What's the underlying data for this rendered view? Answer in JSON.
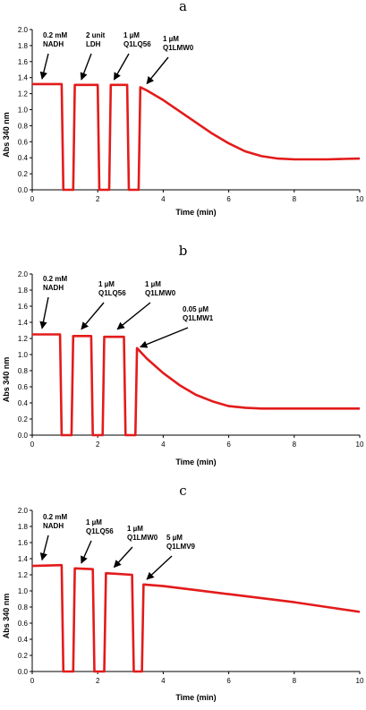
{
  "chart_data": [
    {
      "type": "line",
      "panel": "a",
      "xlabel": "Time (min)",
      "ylabel": "Abs 340 nm",
      "xlim": [
        0,
        10
      ],
      "ylim": [
        0,
        2.0
      ],
      "xticks": [
        "0",
        "2",
        "4",
        "6",
        "8",
        "10"
      ],
      "yticks": [
        "0.0",
        "0.2",
        "0.4",
        "0.6",
        "0.8",
        "1.0",
        "1.2",
        "1.4",
        "1.6",
        "1.8",
        "2.0"
      ],
      "grid": false,
      "series": [
        {
          "color": "#e31b1b",
          "x": [
            0,
            0.9,
            0.95,
            1.25,
            1.3,
            2.0,
            2.05,
            2.35,
            2.4,
            2.9,
            2.95,
            3.25,
            3.3,
            3.5,
            4.0,
            4.5,
            5.0,
            5.5,
            6.0,
            6.5,
            7.0,
            7.5,
            8.0,
            8.5,
            9.0,
            9.5,
            10
          ],
          "y": [
            1.32,
            1.32,
            0.0,
            0.0,
            1.31,
            1.31,
            0.0,
            0.0,
            1.31,
            1.31,
            0.0,
            0.0,
            1.28,
            1.24,
            1.12,
            0.98,
            0.84,
            0.7,
            0.58,
            0.48,
            0.42,
            0.39,
            0.38,
            0.38,
            0.38,
            0.385,
            0.39
          ]
        }
      ],
      "annotations": [
        {
          "lines": [
            "0.2 mM",
            "NADH"
          ],
          "point": [
            0.3,
            1.34
          ]
        },
        {
          "lines": [
            "2 unit",
            "LDH"
          ],
          "point": [
            1.5,
            1.33
          ]
        },
        {
          "lines": [
            "1 µM",
            "Q1LQ56"
          ],
          "point": [
            2.5,
            1.33
          ]
        },
        {
          "lines": [
            "1 µM",
            "Q1LMW0"
          ],
          "point": [
            3.5,
            1.28
          ]
        }
      ]
    },
    {
      "type": "line",
      "panel": "b",
      "xlabel": "Time (min)",
      "ylabel": "Abs 340 nm",
      "xlim": [
        0,
        10
      ],
      "ylim": [
        0,
        2.0
      ],
      "xticks": [
        "0",
        "2",
        "4",
        "6",
        "8",
        "10"
      ],
      "yticks": [
        "0.0",
        "0.2",
        "0.4",
        "0.6",
        "0.8",
        "1.0",
        "1.2",
        "1.4",
        "1.6",
        "1.8",
        "2.0"
      ],
      "grid": false,
      "series": [
        {
          "color": "#e31b1b",
          "x": [
            0,
            0.85,
            0.9,
            1.2,
            1.25,
            1.8,
            1.85,
            2.15,
            2.2,
            2.8,
            2.85,
            3.15,
            3.2,
            3.5,
            4.0,
            4.5,
            5.0,
            5.5,
            6.0,
            6.5,
            7.0,
            8.0,
            9.0,
            10
          ],
          "y": [
            1.25,
            1.25,
            0.0,
            0.0,
            1.23,
            1.23,
            0.0,
            0.0,
            1.22,
            1.22,
            0.0,
            0.0,
            1.08,
            0.95,
            0.77,
            0.62,
            0.5,
            0.42,
            0.36,
            0.34,
            0.33,
            0.33,
            0.33,
            0.33
          ]
        }
      ],
      "annotations": [
        {
          "lines": [
            "0.2 mM",
            "NADH"
          ],
          "point": [
            0.3,
            1.28
          ]
        },
        {
          "lines": [
            "1 µM",
            "Q1LQ56"
          ],
          "point": [
            1.5,
            1.27
          ]
        },
        {
          "lines": [
            "1 µM",
            "Q1LMW0"
          ],
          "point": [
            2.6,
            1.27
          ]
        },
        {
          "lines": [
            "0.05 µM",
            "Q1LMW1"
          ],
          "point": [
            3.3,
            1.05
          ]
        }
      ]
    },
    {
      "type": "line",
      "panel": "c",
      "xlabel": "Time (min)",
      "ylabel": "Abs 340 nm",
      "xlim": [
        0,
        10
      ],
      "ylim": [
        0,
        2.0
      ],
      "xticks": [
        "0",
        "2",
        "4",
        "6",
        "8",
        "10"
      ],
      "yticks": [
        "0.0",
        "0.2",
        "0.4",
        "0.6",
        "0.8",
        "1.0",
        "1.2",
        "1.4",
        "1.6",
        "1.8",
        "2.0"
      ],
      "grid": false,
      "series": [
        {
          "color": "#e31b1b",
          "x": [
            0,
            0.9,
            0.95,
            1.25,
            1.3,
            1.85,
            1.9,
            2.2,
            2.25,
            3.05,
            3.1,
            3.35,
            3.4,
            4.0,
            5.0,
            6.0,
            7.0,
            8.0,
            9.0,
            10
          ],
          "y": [
            1.31,
            1.32,
            0.0,
            0.0,
            1.28,
            1.27,
            0.0,
            0.0,
            1.22,
            1.2,
            0.0,
            0.0,
            1.08,
            1.06,
            1.01,
            0.96,
            0.91,
            0.86,
            0.8,
            0.74
          ]
        }
      ],
      "annotations": [
        {
          "lines": [
            "0.2 mM",
            "NADH"
          ],
          "point": [
            0.3,
            1.34
          ]
        },
        {
          "lines": [
            "1 µM",
            "Q1LQ56"
          ],
          "point": [
            1.5,
            1.3
          ]
        },
        {
          "lines": [
            "1 µM",
            "Q1LMW0"
          ],
          "point": [
            2.5,
            1.25
          ]
        },
        {
          "lines": [
            "5 µM",
            "Q1LMV9"
          ],
          "point": [
            3.5,
            1.1
          ]
        }
      ]
    }
  ]
}
